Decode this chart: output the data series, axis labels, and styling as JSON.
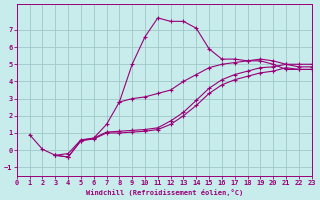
{
  "xlabel": "Windchill (Refroidissement éolien,°C)",
  "ylabel": "",
  "bg_color": "#c8ecec",
  "grid_color": "#a0c8c8",
  "line_color": "#990077",
  "xlim": [
    0,
    23
  ],
  "ylim": [
    -1.5,
    8.5
  ],
  "xticks": [
    0,
    1,
    2,
    3,
    4,
    5,
    6,
    7,
    8,
    9,
    10,
    11,
    12,
    13,
    14,
    15,
    16,
    17,
    18,
    19,
    20,
    21,
    22,
    23
  ],
  "yticks": [
    -1,
    0,
    1,
    2,
    3,
    4,
    5,
    6,
    7
  ],
  "line1_x": [
    1,
    2,
    3,
    4,
    5,
    6,
    7,
    8,
    9,
    10,
    11,
    12,
    13,
    14,
    15,
    16,
    17,
    18,
    19,
    20,
    21,
    22,
    23
  ],
  "line1_y": [
    0.9,
    0.05,
    -0.3,
    -0.2,
    0.6,
    0.7,
    1.5,
    2.8,
    5.0,
    6.6,
    7.7,
    7.5,
    7.5,
    7.1,
    5.9,
    5.3,
    5.3,
    5.2,
    5.2,
    5.0,
    4.7,
    4.7,
    4.7
  ],
  "line2_x": [
    3,
    4,
    5,
    6,
    7,
    8,
    9,
    10,
    11,
    12,
    13,
    14,
    15,
    16,
    17,
    18,
    19,
    20,
    21,
    22,
    23
  ],
  "line2_y": [
    -0.3,
    -0.4,
    0.55,
    0.65,
    1.0,
    1.0,
    1.05,
    1.1,
    1.2,
    1.5,
    2.0,
    2.6,
    3.3,
    3.8,
    4.1,
    4.3,
    4.5,
    4.6,
    4.8,
    4.7,
    4.7
  ],
  "line3_x": [
    3,
    4,
    5,
    6,
    7,
    8,
    9,
    10,
    11,
    12,
    13,
    14,
    15,
    16,
    17,
    18,
    19,
    20,
    21,
    22,
    23
  ],
  "line3_y": [
    -0.3,
    -0.4,
    0.55,
    0.7,
    1.05,
    1.1,
    1.15,
    1.2,
    1.3,
    1.7,
    2.2,
    2.9,
    3.6,
    4.1,
    4.4,
    4.6,
    4.8,
    4.85,
    5.0,
    4.85,
    4.85
  ],
  "line4_x": [
    8,
    9,
    10,
    11,
    12,
    13,
    14,
    15,
    16,
    17,
    18,
    19,
    20,
    21,
    22,
    23
  ],
  "line4_y": [
    2.8,
    3.0,
    3.1,
    3.3,
    3.5,
    4.0,
    4.4,
    4.8,
    5.0,
    5.1,
    5.2,
    5.3,
    5.2,
    5.0,
    5.0,
    5.0
  ]
}
